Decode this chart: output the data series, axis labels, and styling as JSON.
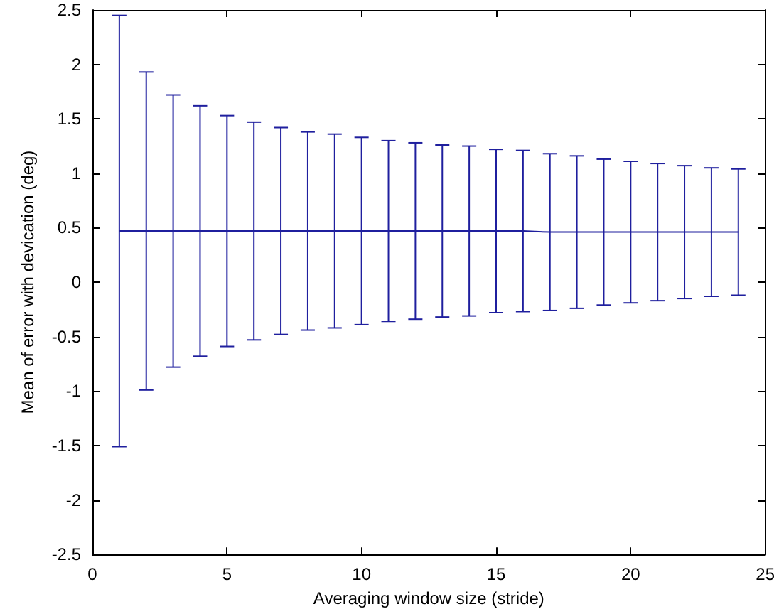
{
  "chart_data": {
    "type": "line",
    "xlabel": "Averaging window size (stride)",
    "ylabel": "Mean of error with devication (deg)",
    "x": [
      1,
      2,
      3,
      4,
      5,
      6,
      7,
      8,
      9,
      10,
      11,
      12,
      13,
      14,
      15,
      16,
      17,
      18,
      19,
      20,
      21,
      22,
      23,
      24
    ],
    "series": [
      {
        "color": "#1f1f9e",
        "values": [
          0.47,
          0.47,
          0.47,
          0.47,
          0.47,
          0.47,
          0.47,
          0.47,
          0.47,
          0.47,
          0.47,
          0.47,
          0.47,
          0.47,
          0.47,
          0.47,
          0.46,
          0.46,
          0.46,
          0.46,
          0.46,
          0.46,
          0.46,
          0.46
        ],
        "errors": [
          1.98,
          1.46,
          1.25,
          1.15,
          1.06,
          1.0,
          0.95,
          0.91,
          0.89,
          0.86,
          0.83,
          0.81,
          0.79,
          0.78,
          0.75,
          0.74,
          0.72,
          0.7,
          0.67,
          0.65,
          0.63,
          0.61,
          0.59,
          0.58
        ]
      }
    ],
    "xlim": [
      0,
      25
    ],
    "xticks": [
      0,
      5,
      10,
      15,
      20,
      25
    ],
    "ylim": [
      -2.5,
      2.5
    ],
    "yticks": [
      -2.5,
      -2,
      -1.5,
      -1,
      -0.5,
      0,
      0.5,
      1,
      1.5,
      2,
      2.5
    ],
    "grid": false,
    "marker": "none",
    "line_style": "solid"
  }
}
